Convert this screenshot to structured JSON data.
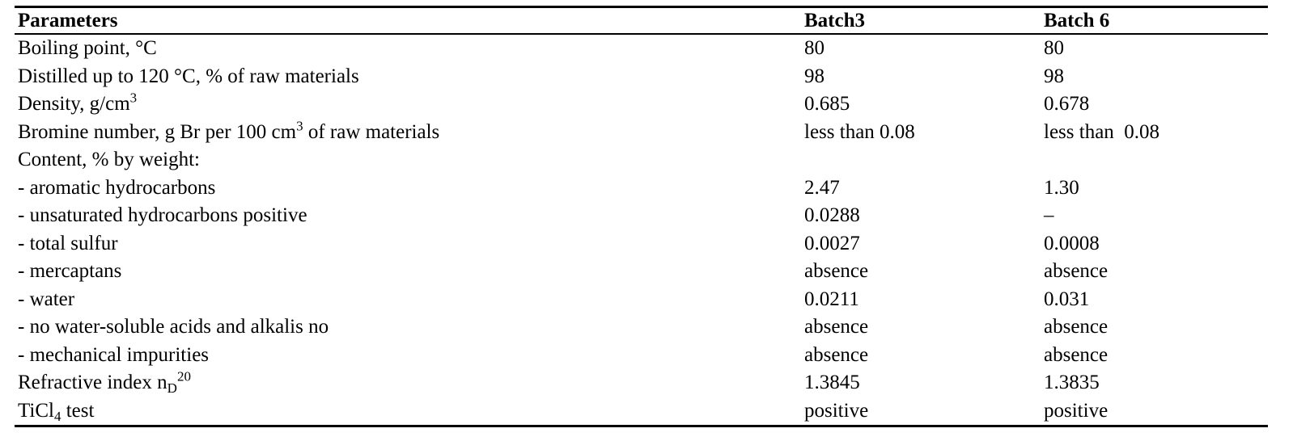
{
  "table": {
    "headers": [
      "Parameters",
      "Batch3",
      "Batch 6"
    ],
    "rows": [
      {
        "param": [
          "Boiling point, °C"
        ],
        "batch3": "80",
        "batch6": "80"
      },
      {
        "param": [
          "Distilled up to 120 °C, % of raw materials"
        ],
        "batch3": "98",
        "batch6": "98"
      },
      {
        "param": [
          "Density, g/cm",
          "3"
        ],
        "param_format": "sup",
        "batch3": "0.685",
        "batch6": "0.678"
      },
      {
        "param": [
          "Bromine number, g Br per 100 cm",
          "3",
          " of raw materials"
        ],
        "param_format": "sup",
        "batch3": "less than 0.08",
        "batch6": "less than  0.08"
      },
      {
        "param": [
          "Content, % by weight:"
        ],
        "batch3": "",
        "batch6": ""
      },
      {
        "param": [
          "- aromatic hydrocarbons"
        ],
        "batch3": "2.47",
        "batch6": "1.30"
      },
      {
        "param": [
          "- unsaturated hydrocarbons positive"
        ],
        "batch3": "0.0288",
        "batch6": "–"
      },
      {
        "param": [
          "- total sulfur"
        ],
        "batch3": "0.0027",
        "batch6": "0.0008"
      },
      {
        "param": [
          "- mercaptans"
        ],
        "batch3": "absence",
        "batch6": "absence"
      },
      {
        "param": [
          "- water"
        ],
        "batch3": "0.0211",
        "batch6": "0.031"
      },
      {
        "param": [
          "- no water-soluble acids and alkalis no"
        ],
        "batch3": "absence",
        "batch6": "absence"
      },
      {
        "param": [
          "- mechanical impurities"
        ],
        "batch3": "absence",
        "batch6": "absence"
      },
      {
        "param": [
          "Refractive index n",
          "D",
          "20"
        ],
        "param_format": "subsup",
        "batch3": "1.3845",
        "batch6": "1.3835"
      },
      {
        "param": [
          "TiCl",
          "4",
          " test"
        ],
        "param_format": "sub",
        "batch3": "positive",
        "batch6": "positive"
      }
    ]
  }
}
